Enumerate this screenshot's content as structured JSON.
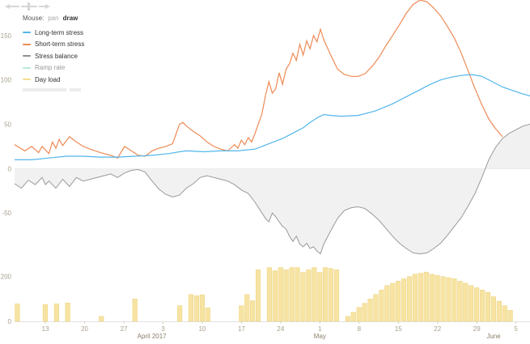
{
  "mouse_mode": {
    "label": "Mouse:",
    "options": [
      "pan",
      "draw"
    ],
    "active": "draw"
  },
  "legend": [
    {
      "name": "Long-term stress",
      "color": "#52b6ea",
      "enabled": true
    },
    {
      "name": "Short-term stress",
      "color": "#ee8a55",
      "enabled": true
    },
    {
      "name": "Stress balance",
      "color": "#8f8f8f",
      "enabled": true
    },
    {
      "name": "Ramp rate",
      "color": "#8fd6c0",
      "enabled": false
    },
    {
      "name": "Day load",
      "color": "#f2de8e",
      "enabled": true
    }
  ],
  "colors": {
    "long_term": "#52b6ea",
    "short_term": "#ee8a55",
    "balance_line": "#9a9a9a",
    "balance_fill": "#f1f1f1",
    "bars": "#f7e3a2",
    "bars_stroke": "#e9cf76",
    "axis_text": "#a8a08c",
    "month_text": "#8a7f68"
  },
  "chart_data": [
    {
      "type": "line",
      "x_range": [
        "2017-03-08",
        "2017-06-08"
      ],
      "ylim": [
        -100,
        190
      ],
      "y_ticks": [
        150,
        100,
        50,
        0,
        -50
      ],
      "x_ticks": [
        "13",
        "20",
        "27",
        "3",
        "10",
        "17",
        "24",
        "1",
        "8",
        "15",
        "22",
        "29",
        "5"
      ],
      "month_labels": [
        "April 2017",
        "May",
        "June"
      ],
      "series": [
        {
          "name": "Short-term stress",
          "points": [
            [
              0,
              27
            ],
            [
              3,
              20
            ],
            [
              5,
              25
            ],
            [
              7,
              18
            ],
            [
              8,
              25
            ],
            [
              10,
              17
            ],
            [
              11,
              30
            ],
            [
              12,
              23
            ],
            [
              13,
              33
            ],
            [
              14,
              26
            ],
            [
              16,
              36
            ],
            [
              18,
              30
            ],
            [
              20,
              25
            ],
            [
              22,
              22
            ],
            [
              25,
              18
            ],
            [
              28,
              15
            ],
            [
              30,
              12
            ],
            [
              32,
              25
            ],
            [
              34,
              20
            ],
            [
              36,
              15
            ],
            [
              38,
              14
            ],
            [
              40,
              20
            ],
            [
              42,
              23
            ],
            [
              44,
              25
            ],
            [
              46,
              28
            ],
            [
              48,
              50
            ],
            [
              49,
              52
            ],
            [
              50,
              48
            ],
            [
              52,
              42
            ],
            [
              54,
              37
            ],
            [
              56,
              30
            ],
            [
              58,
              25
            ],
            [
              60,
              22
            ],
            [
              62,
              20
            ],
            [
              64,
              27
            ],
            [
              65,
              23
            ],
            [
              66,
              32
            ],
            [
              67,
              27
            ],
            [
              68,
              35
            ],
            [
              69,
              30
            ],
            [
              70,
              40
            ],
            [
              72,
              62
            ],
            [
              73,
              82
            ],
            [
              74,
              98
            ],
            [
              75,
              85
            ],
            [
              76,
              90
            ],
            [
              77,
              108
            ],
            [
              78,
              95
            ],
            [
              79,
              112
            ],
            [
              80,
              118
            ],
            [
              81,
              130
            ],
            [
              82,
              122
            ],
            [
              83,
              140
            ],
            [
              84,
              128
            ],
            [
              85,
              144
            ],
            [
              86,
              135
            ],
            [
              87,
              150
            ],
            [
              88,
              143
            ],
            [
              89,
              157
            ],
            [
              90,
              145
            ],
            [
              92,
              128
            ],
            [
              94,
              112
            ],
            [
              96,
              106
            ],
            [
              98,
              104
            ],
            [
              100,
              104
            ],
            [
              102,
              107
            ],
            [
              104,
              115
            ],
            [
              106,
              125
            ],
            [
              108,
              138
            ],
            [
              110,
              150
            ],
            [
              112,
              162
            ],
            [
              114,
              175
            ],
            [
              116,
              185
            ],
            [
              118,
              190
            ],
            [
              120,
              188
            ],
            [
              122,
              181
            ],
            [
              124,
              172
            ],
            [
              126,
              160
            ],
            [
              128,
              147
            ],
            [
              130,
              130
            ],
            [
              132,
              110
            ],
            [
              134,
              90
            ],
            [
              136,
              72
            ],
            [
              138,
              56
            ],
            [
              140,
              45
            ],
            [
              142,
              36
            ]
          ]
        },
        {
          "name": "Long-term stress",
          "points": [
            [
              0,
              10
            ],
            [
              5,
              10
            ],
            [
              10,
              12
            ],
            [
              15,
              14
            ],
            [
              20,
              14
            ],
            [
              25,
              13
            ],
            [
              30,
              13
            ],
            [
              35,
              14
            ],
            [
              40,
              15
            ],
            [
              45,
              17
            ],
            [
              48,
              19
            ],
            [
              50,
              20
            ],
            [
              55,
              19
            ],
            [
              60,
              20
            ],
            [
              65,
              20
            ],
            [
              70,
              22
            ],
            [
              72,
              25
            ],
            [
              74,
              28
            ],
            [
              76,
              31
            ],
            [
              78,
              34
            ],
            [
              80,
              38
            ],
            [
              82,
              42
            ],
            [
              84,
              46
            ],
            [
              86,
              52
            ],
            [
              88,
              57
            ],
            [
              90,
              61
            ],
            [
              92,
              60
            ],
            [
              95,
              59
            ],
            [
              100,
              60
            ],
            [
              105,
              65
            ],
            [
              110,
              73
            ],
            [
              115,
              83
            ],
            [
              118,
              89
            ],
            [
              121,
              95
            ],
            [
              124,
              100
            ],
            [
              127,
              103
            ],
            [
              130,
              105
            ],
            [
              133,
              106
            ],
            [
              136,
              104
            ],
            [
              139,
              98
            ],
            [
              142,
              92
            ],
            [
              145,
              88
            ],
            [
              148,
              84
            ],
            [
              150,
              82
            ]
          ]
        },
        {
          "name": "Stress balance",
          "points": [
            [
              0,
              -17
            ],
            [
              2,
              -22
            ],
            [
              4,
              -13
            ],
            [
              6,
              -18
            ],
            [
              8,
              -10
            ],
            [
              9,
              -18
            ],
            [
              10,
              -14
            ],
            [
              12,
              -22
            ],
            [
              14,
              -12
            ],
            [
              16,
              -20
            ],
            [
              18,
              -10
            ],
            [
              20,
              -14
            ],
            [
              22,
              -12
            ],
            [
              26,
              -8
            ],
            [
              28,
              -6
            ],
            [
              30,
              -10
            ],
            [
              32,
              -5
            ],
            [
              34,
              -2
            ],
            [
              36,
              -1
            ],
            [
              38,
              -4
            ],
            [
              40,
              -14
            ],
            [
              42,
              -23
            ],
            [
              44,
              -29
            ],
            [
              46,
              -32
            ],
            [
              48,
              -30
            ],
            [
              50,
              -22
            ],
            [
              52,
              -17
            ],
            [
              54,
              -10
            ],
            [
              56,
              -8
            ],
            [
              58,
              -10
            ],
            [
              60,
              -12
            ],
            [
              62,
              -14
            ],
            [
              64,
              -18
            ],
            [
              66,
              -24
            ],
            [
              68,
              -28
            ],
            [
              70,
              -38
            ],
            [
              72,
              -50
            ],
            [
              73,
              -56
            ],
            [
              74,
              -60
            ],
            [
              75,
              -50
            ],
            [
              76,
              -54
            ],
            [
              77,
              -60
            ],
            [
              78,
              -65
            ],
            [
              79,
              -68
            ],
            [
              80,
              -76
            ],
            [
              81,
              -82
            ],
            [
              82,
              -76
            ],
            [
              83,
              -85
            ],
            [
              84,
              -88
            ],
            [
              85,
              -84
            ],
            [
              86,
              -90
            ],
            [
              87,
              -88
            ],
            [
              88,
              -93
            ],
            [
              89,
              -96
            ],
            [
              90,
              -85
            ],
            [
              92,
              -70
            ],
            [
              94,
              -56
            ],
            [
              96,
              -47
            ],
            [
              98,
              -44
            ],
            [
              100,
              -43
            ],
            [
              102,
              -45
            ],
            [
              104,
              -51
            ],
            [
              106,
              -58
            ],
            [
              108,
              -67
            ],
            [
              110,
              -76
            ],
            [
              112,
              -84
            ],
            [
              114,
              -90
            ],
            [
              116,
              -95
            ],
            [
              118,
              -96
            ],
            [
              120,
              -95
            ],
            [
              122,
              -90
            ],
            [
              124,
              -84
            ],
            [
              126,
              -75
            ],
            [
              128,
              -65
            ],
            [
              130,
              -55
            ],
            [
              132,
              -42
            ],
            [
              134,
              -28
            ],
            [
              136,
              -10
            ],
            [
              138,
              10
            ],
            [
              140,
              24
            ],
            [
              142,
              34
            ],
            [
              144,
              40
            ],
            [
              146,
              44
            ],
            [
              148,
              48
            ],
            [
              150,
              50
            ]
          ]
        }
      ]
    },
    {
      "type": "bar",
      "name": "Day load",
      "ylim": [
        0,
        260
      ],
      "y_ticks": [
        200,
        0
      ],
      "bars": [
        [
          0,
          78
        ],
        [
          5,
          75
        ],
        [
          7,
          78
        ],
        [
          9,
          82
        ],
        [
          15,
          22
        ],
        [
          21,
          100
        ],
        [
          29,
          70
        ],
        [
          31,
          120
        ],
        [
          32,
          115
        ],
        [
          33,
          118
        ],
        [
          34,
          60
        ],
        [
          40,
          70
        ],
        [
          41,
          120
        ],
        [
          42,
          92
        ],
        [
          43,
          230
        ],
        [
          45,
          240
        ],
        [
          46,
          226
        ],
        [
          47,
          240
        ],
        [
          48,
          230
        ],
        [
          49,
          240
        ],
        [
          50,
          240
        ],
        [
          51,
          218
        ],
        [
          52,
          230
        ],
        [
          53,
          240
        ],
        [
          54,
          218
        ],
        [
          55,
          240
        ],
        [
          56,
          236
        ],
        [
          57,
          230
        ],
        [
          59,
          22
        ],
        [
          60,
          40
        ],
        [
          61,
          62
        ],
        [
          62,
          80
        ],
        [
          63,
          100
        ],
        [
          64,
          120
        ],
        [
          65,
          140
        ],
        [
          66,
          160
        ],
        [
          67,
          170
        ],
        [
          68,
          180
        ],
        [
          69,
          190
        ],
        [
          70,
          200
        ],
        [
          71,
          210
        ],
        [
          72,
          215
        ],
        [
          73,
          220
        ],
        [
          74,
          210
        ],
        [
          75,
          205
        ],
        [
          76,
          200
        ],
        [
          77,
          195
        ],
        [
          78,
          190
        ],
        [
          79,
          180
        ],
        [
          80,
          170
        ],
        [
          81,
          160
        ],
        [
          82,
          150
        ],
        [
          83,
          140
        ],
        [
          84,
          130
        ],
        [
          85,
          110
        ],
        [
          86,
          90
        ],
        [
          87,
          70
        ],
        [
          88,
          50
        ]
      ]
    }
  ]
}
